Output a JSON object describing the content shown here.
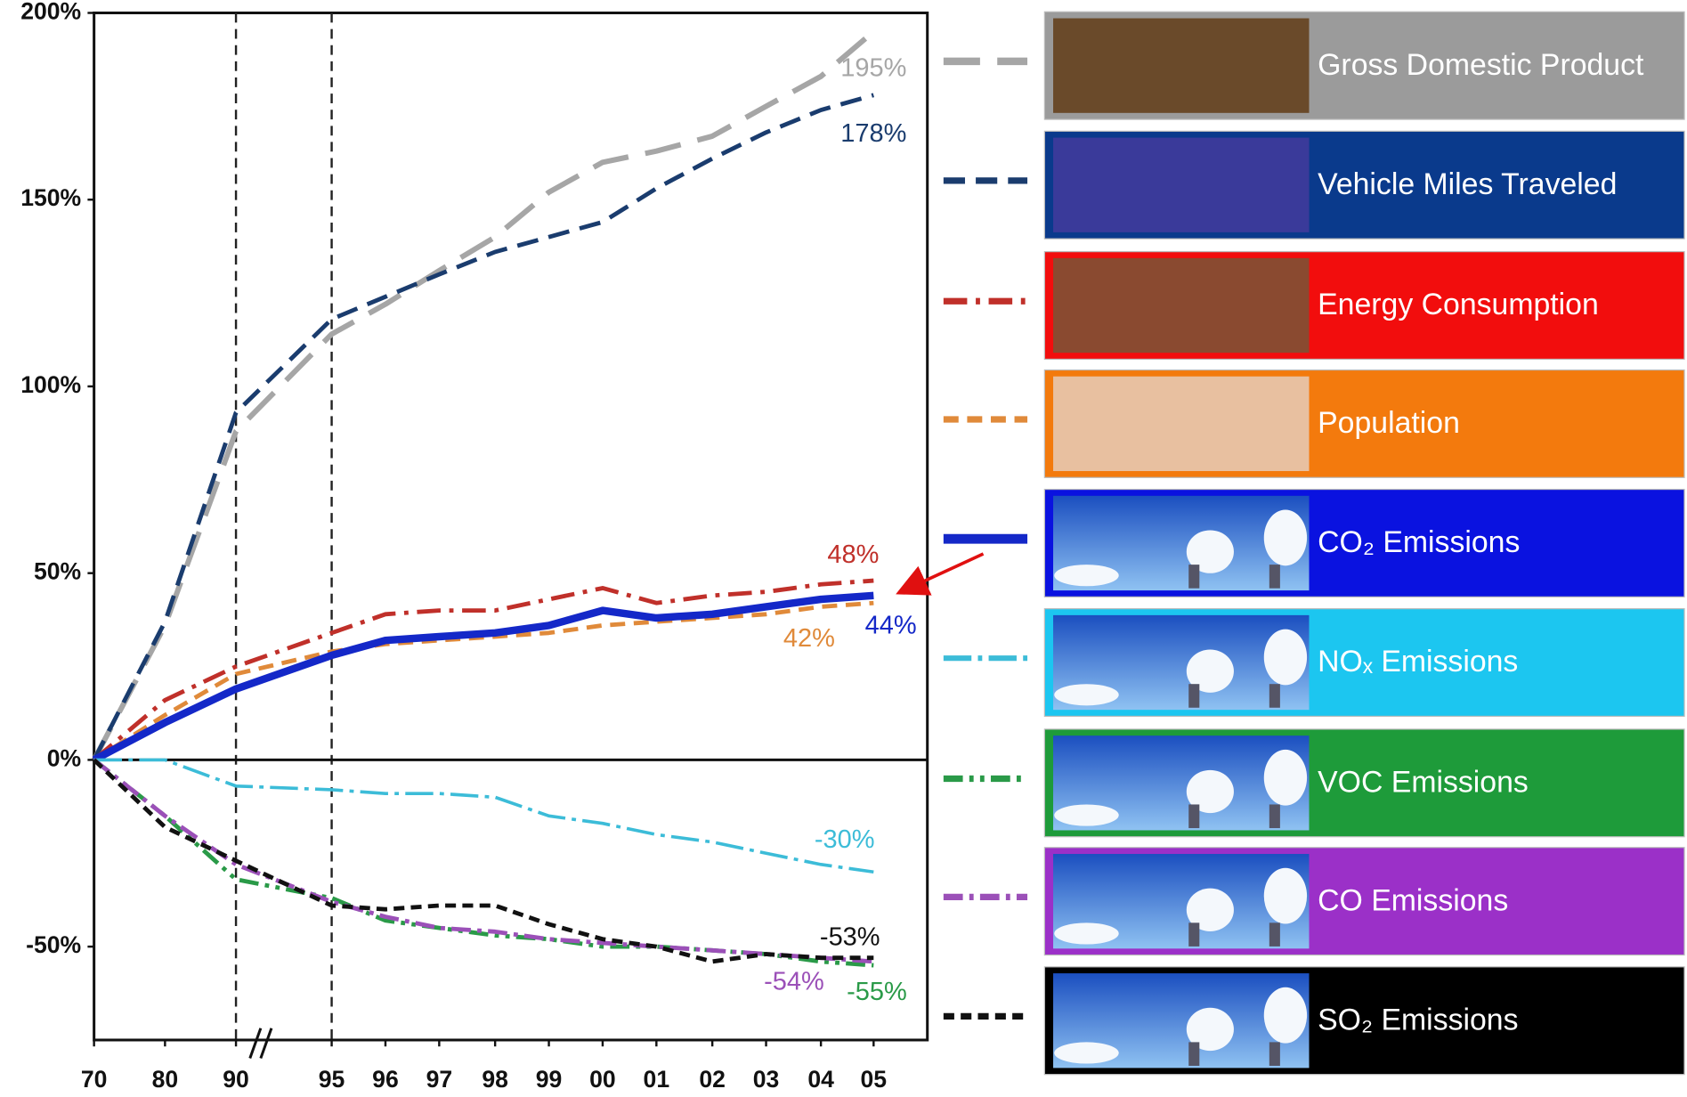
{
  "chart_data": {
    "type": "line",
    "categories": [
      "70",
      "80",
      "90",
      "95",
      "96",
      "97",
      "98",
      "99",
      "00",
      "01",
      "02",
      "03",
      "04",
      "05"
    ],
    "ylim": [
      -75,
      200
    ],
    "yticks": [
      {
        "value": -50,
        "label": "-50%"
      },
      {
        "value": 0,
        "label": "0%"
      },
      {
        "value": 50,
        "label": "50%"
      },
      {
        "value": 100,
        "label": "100%"
      },
      {
        "value": 150,
        "label": "150%"
      },
      {
        "value": 200,
        "label": "200%"
      }
    ],
    "series": [
      {
        "name": "Gross Domestic Product",
        "color": "#a6a6a6",
        "legend_color": "#9b9b9b",
        "values": [
          0,
          36,
          88,
          114,
          122,
          131,
          140,
          152,
          160,
          163,
          167,
          175,
          183,
          195
        ],
        "value_labels": [
          null,
          null,
          null,
          null,
          null,
          null,
          null,
          null,
          null,
          null,
          null,
          null,
          null,
          "195%"
        ]
      },
      {
        "name": "Vehicle Miles Traveled",
        "color": "#1a3c6e",
        "legend_color": "#0a3a8c",
        "values": [
          0,
          37,
          93,
          118,
          124,
          130,
          136,
          140,
          144,
          153,
          161,
          168,
          174,
          178
        ],
        "value_labels": [
          null,
          null,
          null,
          null,
          null,
          null,
          null,
          null,
          null,
          null,
          null,
          null,
          null,
          "178%"
        ]
      },
      {
        "name": "Energy Consumption",
        "color": "#c0302a",
        "legend_color": "#f20d0d",
        "values": [
          0,
          16,
          25,
          34,
          39,
          40,
          40,
          43,
          46,
          42,
          44,
          45,
          47,
          48
        ],
        "value_labels": [
          null,
          null,
          null,
          null,
          null,
          null,
          null,
          null,
          null,
          null,
          null,
          null,
          null,
          "48%"
        ]
      },
      {
        "name": "Population",
        "color": "#e08a3a",
        "legend_color": "#f37a0d",
        "values": [
          0,
          12,
          23,
          29,
          31,
          32,
          33,
          34,
          36,
          37,
          38,
          39,
          41,
          42
        ],
        "value_labels": [
          null,
          null,
          null,
          null,
          null,
          null,
          null,
          null,
          null,
          null,
          null,
          null,
          null,
          "42%"
        ]
      },
      {
        "name": "CO₂ Emissions",
        "color": "#1428c8",
        "legend_color": "#0a12e0",
        "values": [
          0,
          10,
          19,
          28,
          32,
          33,
          34,
          36,
          40,
          38,
          39,
          41,
          43,
          44
        ],
        "value_labels": [
          null,
          null,
          null,
          null,
          null,
          null,
          null,
          null,
          null,
          null,
          null,
          null,
          null,
          "44%"
        ]
      },
      {
        "name": "NOₓ Emissions",
        "color": "#3cbcd8",
        "legend_color": "#1cc6f0",
        "values": [
          0,
          0,
          -7,
          -8,
          -9,
          -9,
          -10,
          -15,
          -17,
          -20,
          -22,
          -25,
          -28,
          -30
        ],
        "value_labels": [
          null,
          null,
          null,
          null,
          null,
          null,
          null,
          null,
          null,
          null,
          null,
          null,
          null,
          "-30%"
        ]
      },
      {
        "name": "VOC Emissions",
        "color": "#2a9a48",
        "legend_color": "#1e9b3a",
        "values": [
          0,
          -15,
          -32,
          -37,
          -43,
          -45,
          -47,
          -48,
          -50,
          -50,
          -51,
          -52,
          -54,
          -55
        ],
        "value_labels": [
          null,
          null,
          null,
          null,
          null,
          null,
          null,
          null,
          null,
          null,
          null,
          null,
          null,
          "-55%"
        ]
      },
      {
        "name": "CO Emissions",
        "color": "#9b50b8",
        "legend_color": "#9b30c8",
        "values": [
          0,
          -15,
          -28,
          -38,
          -42,
          -45,
          -46,
          -48,
          -49,
          -50,
          -51,
          -52,
          -53,
          -54
        ],
        "value_labels": [
          null,
          null,
          null,
          null,
          null,
          null,
          null,
          null,
          null,
          null,
          null,
          null,
          null,
          "-54%"
        ]
      },
      {
        "name": "SO₂ Emissions",
        "color": "#111111",
        "legend_color": "#000000",
        "values": [
          0,
          -18,
          -27,
          -39,
          -40,
          -39,
          -39,
          -44,
          -48,
          -50,
          -54,
          -52,
          -53,
          -53
        ],
        "value_labels": [
          null,
          null,
          null,
          null,
          null,
          null,
          null,
          null,
          null,
          null,
          null,
          null,
          null,
          "-53%"
        ]
      }
    ]
  }
}
